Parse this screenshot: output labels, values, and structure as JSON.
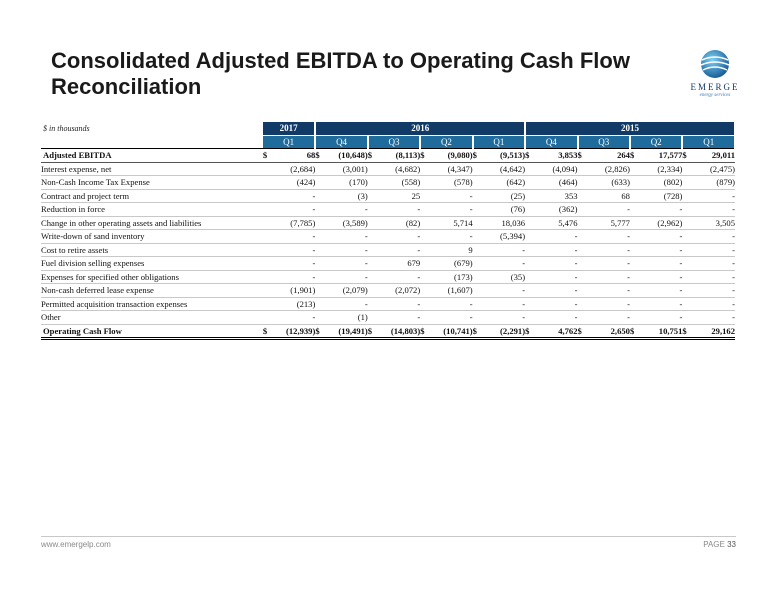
{
  "title": {
    "line1": "Consolidated Adjusted EBITDA to Operating Cash Flow",
    "line2": "Reconciliation"
  },
  "logo": {
    "name": "EMERGE",
    "tagline": "energy services",
    "icon": "globe-swirl-logo",
    "color": "#123a66"
  },
  "units": "$ in thousands",
  "table": {
    "years": [
      {
        "label": "2017",
        "span": 1
      },
      {
        "label": "2016",
        "span": 4
      },
      {
        "label": "2015",
        "span": 4
      }
    ],
    "quarters": [
      "Q1",
      "Q4",
      "Q3",
      "Q2",
      "Q1",
      "Q4",
      "Q3",
      "Q2",
      "Q1"
    ],
    "rows": [
      {
        "label": "Adjusted EBITDA",
        "style": "first",
        "dollar": true,
        "values": [
          "68",
          "(10,648)",
          "(8,113)",
          "(9,080)",
          "(9,513)",
          "3,853",
          "264",
          "17,577",
          "29,011"
        ]
      },
      {
        "label": "Interest expense, net",
        "style": "detail",
        "values": [
          "(2,684)",
          "(3,001)",
          "(4,682)",
          "(4,347)",
          "(4,642)",
          "(4,094)",
          "(2,826)",
          "(2,334)",
          "(2,475)"
        ]
      },
      {
        "label": "Non-Cash Income Tax Expense",
        "style": "detail",
        "values": [
          "(424)",
          "(170)",
          "(558)",
          "(578)",
          "(642)",
          "(464)",
          "(633)",
          "(802)",
          "(879)"
        ]
      },
      {
        "label": "Contract and project term",
        "style": "detail",
        "values": [
          "-",
          "(3)",
          "25",
          "-",
          "(25)",
          "353",
          "68",
          "(728)",
          "-"
        ]
      },
      {
        "label": "Reduction in force",
        "style": "detail",
        "values": [
          "-",
          "-",
          "-",
          "-",
          "(76)",
          "(362)",
          "-",
          "-",
          "-"
        ]
      },
      {
        "label": "Change in other operating assets and liabilities",
        "style": "detail",
        "values": [
          "(7,785)",
          "(3,589)",
          "(82)",
          "5,714",
          "18,036",
          "5,476",
          "5,777",
          "(2,962)",
          "3,505"
        ]
      },
      {
        "label": "Write-down of sand inventory",
        "style": "detail",
        "values": [
          "-",
          "-",
          "-",
          "-",
          "(5,394)",
          "-",
          "-",
          "-",
          "-"
        ]
      },
      {
        "label": "Cost to retire assets",
        "style": "detail",
        "values": [
          "-",
          "-",
          "-",
          "9",
          "-",
          "-",
          "-",
          "-",
          "-"
        ]
      },
      {
        "label": "Fuel division selling expenses",
        "style": "detail",
        "values": [
          "-",
          "-",
          "679",
          "(679)",
          "-",
          "-",
          "-",
          "-",
          "-"
        ]
      },
      {
        "label": "Expenses for specified other obligations",
        "style": "detail",
        "values": [
          "-",
          "-",
          "-",
          "(173)",
          "(35)",
          "-",
          "-",
          "-",
          "-"
        ]
      },
      {
        "label": "Non-cash deferred lease expense",
        "style": "detail",
        "values": [
          "(1,901)",
          "(2,079)",
          "(2,072)",
          "(1,607)",
          "-",
          "-",
          "-",
          "-",
          "-"
        ]
      },
      {
        "label": "Permitted acquisition transaction expenses",
        "style": "detail",
        "values": [
          "(213)",
          "-",
          "-",
          "-",
          "-",
          "-",
          "-",
          "-",
          "-"
        ]
      },
      {
        "label": "Other",
        "style": "detail",
        "values": [
          "-",
          "(1)",
          "-",
          "-",
          "-",
          "-",
          "-",
          "-",
          "-"
        ]
      },
      {
        "label": "Operating Cash Flow",
        "style": "total",
        "dollar": true,
        "values": [
          "(12,939)",
          "(19,491)",
          "(14,803)",
          "(10,741)",
          "(2,291)",
          "4,762",
          "2,650",
          "10,751",
          "29,162"
        ]
      }
    ]
  },
  "footer": {
    "url": "www.emergelp.com",
    "page_label": "PAGE",
    "page_number": "33"
  },
  "colors": {
    "header_dark": "#123a66",
    "header_mid": "#1f6b9c"
  }
}
